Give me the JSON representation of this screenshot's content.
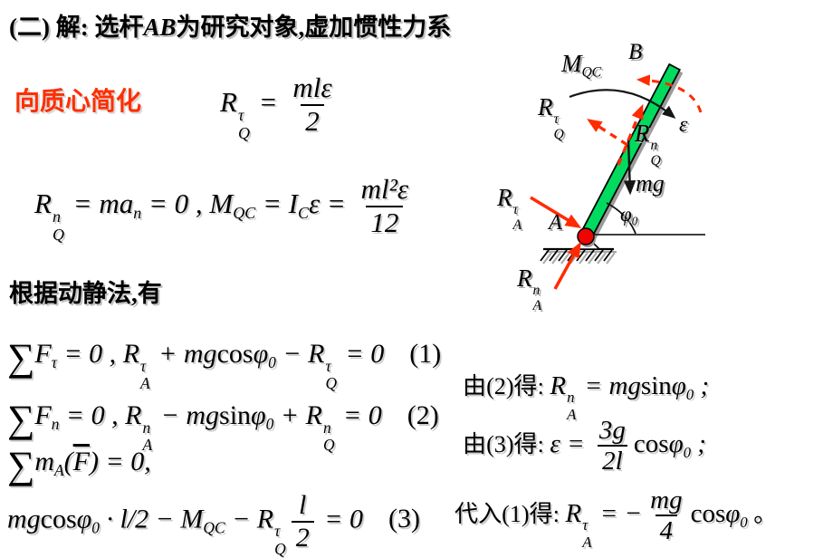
{
  "colors": {
    "rod_green": "#00db60",
    "arrow_red": "#ff2b00",
    "pin_red": "#ee0500",
    "highlight_red": "#ff2e00"
  },
  "title": {
    "part1": "(二) 解:  选杆",
    "part2": "AB",
    "part3": "为研究对象,虚加惯性力系"
  },
  "labels": {
    "reduce_to_centroid": "向质心简化",
    "method_line": "根据动静法,有"
  },
  "equations": {
    "f1": [
      {
        "t": "txt",
        "v": "R"
      },
      {
        "t": "ss",
        "sup": "τ",
        "sub": "Q"
      },
      {
        "t": "txt",
        "v": " = "
      },
      {
        "t": "frac",
        "num": "mlε",
        "den": "2"
      }
    ],
    "f2": [
      {
        "t": "txt",
        "v": "R"
      },
      {
        "t": "ss",
        "sup": "n",
        "sub": "Q"
      },
      {
        "t": "txt",
        "v": " = ma"
      },
      {
        "t": "sb",
        "v": "n"
      },
      {
        "t": "txt",
        "v": " = 0 , "
      },
      {
        "t": "txt",
        "v": "M"
      },
      {
        "t": "sb",
        "v": "QC"
      },
      {
        "t": "txt",
        "v": " = I"
      },
      {
        "t": "sb",
        "v": "C"
      },
      {
        "t": "txt",
        "v": "ε = "
      },
      {
        "t": "frac",
        "num": "ml²ε",
        "den": "12"
      }
    ],
    "eq1": [
      {
        "t": "sum",
        "v": "∑"
      },
      {
        "t": "txt",
        "v": "F"
      },
      {
        "t": "sb",
        "v": "τ"
      },
      {
        "t": "txt",
        "v": " = 0 ,  "
      },
      {
        "t": "txt",
        "v": "R"
      },
      {
        "t": "ss",
        "sup": "τ",
        "sub": "A"
      },
      {
        "t": "txt",
        "v": " + mg"
      },
      {
        "t": "rm",
        "v": "cos"
      },
      {
        "t": "txt",
        "v": "φ"
      },
      {
        "t": "sb",
        "v": "0"
      },
      {
        "t": "txt",
        "v": " − R"
      },
      {
        "t": "ss",
        "sup": "τ",
        "sub": "Q"
      },
      {
        "t": "txt",
        "v": " = 0"
      },
      {
        "t": "eqn",
        "v": "(1)"
      }
    ],
    "eq2": [
      {
        "t": "sum",
        "v": "∑"
      },
      {
        "t": "txt",
        "v": "F"
      },
      {
        "t": "sb",
        "v": "n"
      },
      {
        "t": "txt",
        "v": " = 0 ,  "
      },
      {
        "t": "txt",
        "v": "R"
      },
      {
        "t": "ss",
        "sup": "n",
        "sub": "A"
      },
      {
        "t": "txt",
        "v": " − mg"
      },
      {
        "t": "rm",
        "v": "sin"
      },
      {
        "t": "txt",
        "v": "φ"
      },
      {
        "t": "sb",
        "v": "0"
      },
      {
        "t": "txt",
        "v": " + R"
      },
      {
        "t": "ss",
        "sup": "n",
        "sub": "Q"
      },
      {
        "t": "txt",
        "v": " = 0"
      },
      {
        "t": "eqn",
        "v": "(2)"
      }
    ],
    "eq3a": [
      {
        "t": "sum",
        "v": "∑"
      },
      {
        "t": "txt",
        "v": "m"
      },
      {
        "t": "sb",
        "v": "A"
      },
      {
        "t": "txt",
        "v": "("
      },
      {
        "t": "bar",
        "v": "F"
      },
      {
        "t": "txt",
        "v": ") = 0,"
      }
    ],
    "eq3b": [
      {
        "t": "txt",
        "v": "mg"
      },
      {
        "t": "rm",
        "v": "cos"
      },
      {
        "t": "txt",
        "v": "φ"
      },
      {
        "t": "sb",
        "v": "0"
      },
      {
        "t": "txt",
        "v": " · l/2 − M"
      },
      {
        "t": "sb",
        "v": "QC"
      },
      {
        "t": "txt",
        "v": " − R"
      },
      {
        "t": "ss",
        "sup": "τ",
        "sub": "Q"
      },
      {
        "t": "frac",
        "num": "l",
        "den": "2"
      },
      {
        "t": "txt",
        "v": " = 0"
      },
      {
        "t": "eqn",
        "v": "(3)"
      }
    ],
    "r1": [
      {
        "t": "cn",
        "v": "由(2)得: "
      },
      {
        "t": "txt",
        "v": "R"
      },
      {
        "t": "ss",
        "sup": "n",
        "sub": "A"
      },
      {
        "t": "txt",
        "v": " = mg"
      },
      {
        "t": "rm",
        "v": "sin"
      },
      {
        "t": "txt",
        "v": "φ"
      },
      {
        "t": "sb",
        "v": "0"
      },
      {
        "t": "txt",
        "v": " ;"
      }
    ],
    "r2": [
      {
        "t": "cn",
        "v": "由(3)得: "
      },
      {
        "t": "txt",
        "v": "ε = "
      },
      {
        "t": "frac",
        "num": "3g",
        "den": "2l"
      },
      {
        "t": "rm",
        "v": "cos"
      },
      {
        "t": "txt",
        "v": "φ"
      },
      {
        "t": "sb",
        "v": "0"
      },
      {
        "t": "txt",
        "v": " ;"
      }
    ],
    "r3": [
      {
        "t": "cn",
        "v": "代入(1)得: "
      },
      {
        "t": "txt",
        "v": "R"
      },
      {
        "t": "ss",
        "sup": "τ",
        "sub": "A"
      },
      {
        "t": "txt",
        "v": " = −"
      },
      {
        "t": "frac",
        "num": "mg",
        "den": "4"
      },
      {
        "t": "rm",
        "v": "cos"
      },
      {
        "t": "txt",
        "v": "φ"
      },
      {
        "t": "sb",
        "v": "0"
      },
      {
        "t": "cn",
        "v": " 。"
      }
    ]
  },
  "diagram": {
    "labels": {
      "M_QC": [
        {
          "t": "txt",
          "v": "M"
        },
        {
          "t": "sb",
          "v": "QC"
        }
      ],
      "B": [
        {
          "t": "txt",
          "v": "B"
        }
      ],
      "RQ_tau": [
        {
          "t": "txt",
          "v": "R"
        },
        {
          "t": "ss",
          "sup": "τ",
          "sub": "Q"
        }
      ],
      "RQ_n": [
        {
          "t": "txt",
          "v": "R"
        },
        {
          "t": "ss",
          "sup": "n",
          "sub": "Q"
        }
      ],
      "epsilon": [
        {
          "t": "txt",
          "v": "ε"
        }
      ],
      "mg": [
        {
          "t": "txt",
          "v": "mg"
        }
      ],
      "phi0": [
        {
          "t": "txt",
          "v": "φ"
        },
        {
          "t": "sb",
          "v": "0"
        }
      ],
      "A": [
        {
          "t": "txt",
          "v": "A"
        }
      ],
      "RA_tau": [
        {
          "t": "txt",
          "v": "R"
        },
        {
          "t": "ss",
          "sup": "τ",
          "sub": "A"
        }
      ],
      "RA_n": [
        {
          "t": "txt",
          "v": "R"
        },
        {
          "t": "ss",
          "sup": "n",
          "sub": "A"
        }
      ]
    }
  }
}
